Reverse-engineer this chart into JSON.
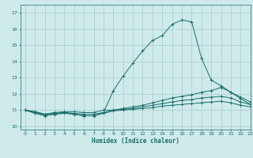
{
  "title": "",
  "xlabel": "Humidex (Indice chaleur)",
  "ylabel": "",
  "background_color": "#ceeaea",
  "grid_color": "#a8cccc",
  "line_color": "#1a6e6a",
  "xlim": [
    -0.5,
    23
  ],
  "ylim": [
    9.8,
    17.5
  ],
  "yticks": [
    10,
    11,
    12,
    13,
    14,
    15,
    16,
    17
  ],
  "xticks": [
    0,
    1,
    2,
    3,
    4,
    5,
    6,
    7,
    8,
    9,
    10,
    11,
    12,
    13,
    14,
    15,
    16,
    17,
    18,
    19,
    20,
    21,
    22,
    23
  ],
  "series": [
    {
      "x": [
        0,
        1,
        2,
        3,
        4,
        5,
        6,
        7,
        8,
        9,
        10,
        11,
        12,
        13,
        14,
        15,
        16,
        17,
        18,
        19,
        20,
        21,
        22,
        23
      ],
      "y": [
        11.0,
        10.8,
        10.65,
        10.75,
        10.85,
        10.75,
        10.65,
        10.65,
        10.85,
        12.2,
        13.1,
        13.9,
        14.65,
        15.3,
        15.6,
        16.3,
        16.55,
        16.45,
        14.2,
        12.85,
        12.5,
        12.1,
        11.8,
        11.5
      ]
    },
    {
      "x": [
        0,
        1,
        2,
        3,
        4,
        5,
        6,
        7,
        8,
        9,
        10,
        11,
        12,
        13,
        14,
        15,
        16,
        17,
        18,
        19,
        20,
        21,
        22,
        23
      ],
      "y": [
        11.0,
        10.9,
        10.75,
        10.85,
        10.9,
        10.9,
        10.85,
        10.85,
        11.0,
        11.0,
        11.1,
        11.2,
        11.3,
        11.45,
        11.6,
        11.75,
        11.85,
        11.95,
        12.1,
        12.2,
        12.4,
        12.1,
        11.7,
        11.35
      ]
    },
    {
      "x": [
        0,
        1,
        2,
        3,
        4,
        5,
        6,
        7,
        8,
        9,
        10,
        11,
        12,
        13,
        14,
        15,
        16,
        17,
        18,
        19,
        20,
        21,
        22,
        23
      ],
      "y": [
        11.0,
        10.9,
        10.75,
        10.8,
        10.85,
        10.8,
        10.75,
        10.75,
        10.85,
        11.0,
        11.05,
        11.1,
        11.2,
        11.3,
        11.4,
        11.5,
        11.6,
        11.65,
        11.75,
        11.8,
        11.85,
        11.75,
        11.5,
        11.35
      ]
    },
    {
      "x": [
        0,
        1,
        2,
        3,
        4,
        5,
        6,
        7,
        8,
        9,
        10,
        11,
        12,
        13,
        14,
        15,
        16,
        17,
        18,
        19,
        20,
        21,
        22,
        23
      ],
      "y": [
        11.0,
        10.85,
        10.7,
        10.75,
        10.8,
        10.75,
        10.65,
        10.65,
        10.8,
        10.95,
        11.0,
        11.05,
        11.1,
        11.15,
        11.25,
        11.3,
        11.35,
        11.4,
        11.45,
        11.5,
        11.55,
        11.45,
        11.3,
        11.2
      ]
    }
  ]
}
